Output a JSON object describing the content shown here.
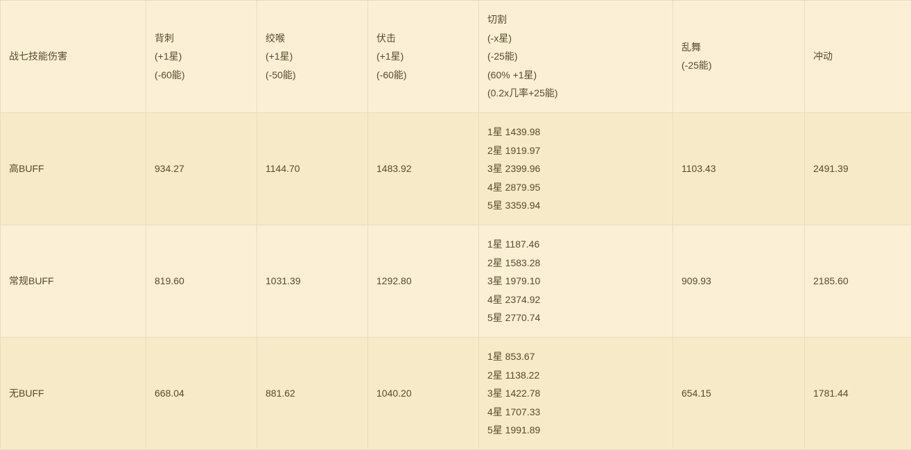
{
  "table": {
    "background_color": "#fbf0d6",
    "alt_row_color": "#f7eac8",
    "border_color": "#e8dcc0",
    "text_color": "#5a4a2a",
    "font_size": 14,
    "columns": [
      {
        "lines": [
          "战七技能伤害"
        ]
      },
      {
        "lines": [
          "背刺",
          "(+1星)",
          "(-60能)"
        ]
      },
      {
        "lines": [
          "绞喉",
          "(+1星)",
          "(-50能)"
        ]
      },
      {
        "lines": [
          "伏击",
          "(+1星)",
          "(-60能)"
        ]
      },
      {
        "lines": [
          "切割",
          "(-x星)",
          "(-25能)",
          "(60% +1星)",
          "(0.2x几率+25能)"
        ]
      },
      {
        "lines": [
          "乱舞",
          "(-25能)"
        ]
      },
      {
        "lines": [
          "冲动"
        ]
      }
    ],
    "rows": [
      {
        "label": "高BUFF",
        "cells": [
          [
            "934.27"
          ],
          [
            "1144.70"
          ],
          [
            "1483.92"
          ],
          [
            "1星 1439.98",
            "2星 1919.97",
            "3星 2399.96",
            "4星 2879.95",
            "5星 3359.94"
          ],
          [
            "1103.43"
          ],
          [
            "2491.39"
          ]
        ]
      },
      {
        "label": "常规BUFF",
        "cells": [
          [
            "819.60"
          ],
          [
            "1031.39"
          ],
          [
            "1292.80"
          ],
          [
            "1星 1187.46",
            "2星 1583.28",
            "3星 1979.10",
            "4星 2374.92",
            "5星 2770.74"
          ],
          [
            "909.93"
          ],
          [
            "2185.60"
          ]
        ]
      },
      {
        "label": "无BUFF",
        "cells": [
          [
            "668.04"
          ],
          [
            "881.62"
          ],
          [
            "1040.20"
          ],
          [
            "1星 853.67",
            "2星 1138.22",
            "3星 1422.78",
            "4星 1707.33",
            "5星 1991.89"
          ],
          [
            "654.15"
          ],
          [
            "1781.44"
          ]
        ]
      }
    ]
  }
}
